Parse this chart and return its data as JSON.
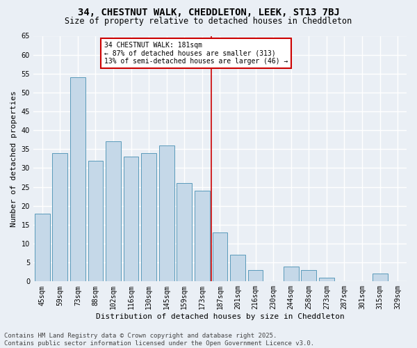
{
  "title": "34, CHESTNUT WALK, CHEDDLETON, LEEK, ST13 7BJ",
  "subtitle": "Size of property relative to detached houses in Cheddleton",
  "xlabel": "Distribution of detached houses by size in Cheddleton",
  "ylabel": "Number of detached properties",
  "categories": [
    "45sqm",
    "59sqm",
    "73sqm",
    "88sqm",
    "102sqm",
    "116sqm",
    "130sqm",
    "145sqm",
    "159sqm",
    "173sqm",
    "187sqm",
    "201sqm",
    "216sqm",
    "230sqm",
    "244sqm",
    "258sqm",
    "273sqm",
    "287sqm",
    "301sqm",
    "315sqm",
    "329sqm"
  ],
  "values": [
    18,
    34,
    54,
    32,
    37,
    33,
    34,
    36,
    26,
    24,
    13,
    7,
    3,
    0,
    4,
    3,
    1,
    0,
    0,
    2,
    0
  ],
  "bar_color": "#c5d8e8",
  "bar_edge_color": "#5a9aba",
  "vline_index": 9.5,
  "annotation_text": "34 CHESTNUT WALK: 181sqm\n← 87% of detached houses are smaller (313)\n13% of semi-detached houses are larger (46) →",
  "annotation_box_color": "#ffffff",
  "annotation_box_edge_color": "#cc0000",
  "ylim": [
    0,
    65
  ],
  "yticks": [
    0,
    5,
    10,
    15,
    20,
    25,
    30,
    35,
    40,
    45,
    50,
    55,
    60,
    65
  ],
  "footer_text": "Contains HM Land Registry data © Crown copyright and database right 2025.\nContains public sector information licensed under the Open Government Licence v3.0.",
  "bg_color": "#eaeff5",
  "plot_bg_color": "#eaeff5",
  "grid_color": "#ffffff",
  "title_fontsize": 10,
  "subtitle_fontsize": 8.5,
  "axis_label_fontsize": 8,
  "tick_fontsize": 7,
  "footer_fontsize": 6.5
}
